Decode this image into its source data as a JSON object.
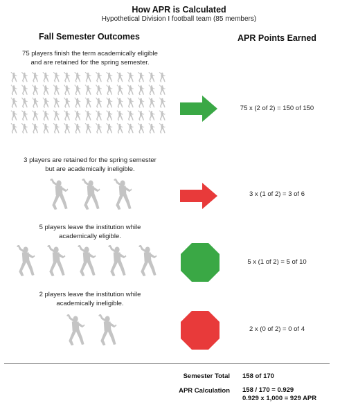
{
  "header": {
    "title": "How APR is Calculated",
    "subtitle": "Hypothetical Division I football team (85 members)"
  },
  "columns": {
    "left": "Fall Semester Outcomes",
    "right": "APR Points Earned"
  },
  "outcomes": [
    {
      "line1": "75 players finish the term academically eligible",
      "line2": "and are retained for the spring semester.",
      "players": 75,
      "symbol": "arrow",
      "color": "#3aa845",
      "points": "75 x (2 of 2) = 150 of 150"
    },
    {
      "line1": "3 players are retained for the spring semester",
      "line2": "but are academically ineligible.",
      "players": 3,
      "symbol": "arrow",
      "color": "#e83a3a",
      "points": "3 x (1 of 2) = 3 of 6"
    },
    {
      "line1": "5 players leave the institution while",
      "line2": "academically eligible.",
      "players": 5,
      "symbol": "octagon",
      "color": "#3aa845",
      "points": "5 x (1 of 2) = 5 of 10"
    },
    {
      "line1": "2 players leave the institution while",
      "line2": "academically ineligible.",
      "players": 2,
      "symbol": "octagon",
      "color": "#e83a3a",
      "points": "2 x (0 of 2) = 0 of 4"
    }
  ],
  "summary": {
    "total_label": "Semester Total",
    "total_value": "158 of 170",
    "calc_label": "APR Calculation",
    "calc_line1": "158 / 170 = 0.929",
    "calc_line2": "0.929 x 1,000 = 929 APR"
  },
  "icons": {
    "player": "football-player-icon",
    "proceed": "arrow-right-icon",
    "stop": "octagon-icon"
  },
  "colors": {
    "player": "#c4c4c4",
    "text": "#111111"
  }
}
